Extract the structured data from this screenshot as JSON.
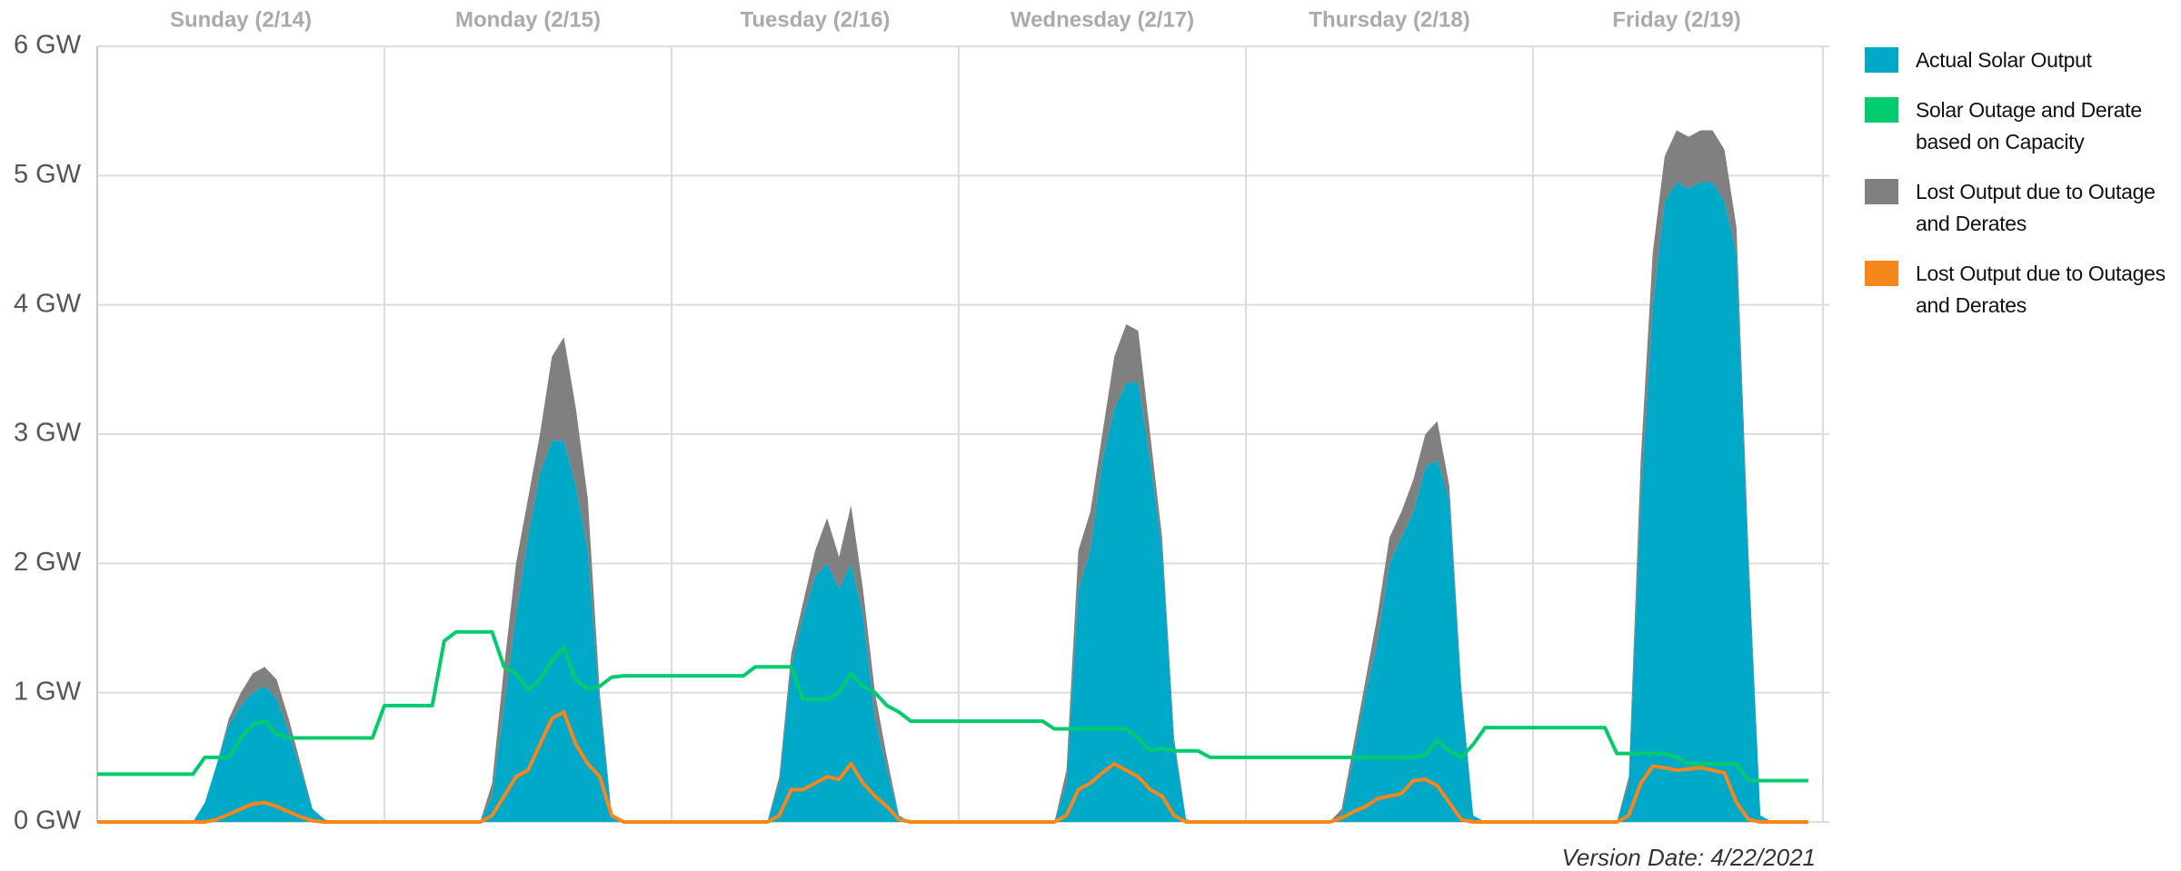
{
  "chart_data": {
    "type": "area",
    "days": [
      "Sunday (2/14)",
      "Monday (2/15)",
      "Tuesday (2/16)",
      "Wednesday (2/17)",
      "Thursday (2/18)",
      "Friday (2/19)"
    ],
    "x": [
      0,
      1,
      2,
      3,
      4,
      5,
      6,
      7,
      8,
      9,
      10,
      11,
      12,
      13,
      14,
      15,
      16,
      17,
      18,
      19,
      20,
      21,
      22,
      23,
      24,
      25,
      26,
      27,
      28,
      29,
      30,
      31,
      32,
      33,
      34,
      35,
      36,
      37,
      38,
      39,
      40,
      41,
      42,
      43,
      44,
      45,
      46,
      47,
      48,
      49,
      50,
      51,
      52,
      53,
      54,
      55,
      56,
      57,
      58,
      59,
      60,
      61,
      62,
      63,
      64,
      65,
      66,
      67,
      68,
      69,
      70,
      71,
      72,
      73,
      74,
      75,
      76,
      77,
      78,
      79,
      80,
      81,
      82,
      83,
      84,
      85,
      86,
      87,
      88,
      89,
      90,
      91,
      92,
      93,
      94,
      95,
      96,
      97,
      98,
      99,
      100,
      101,
      102,
      103,
      104,
      105,
      106,
      107,
      108,
      109,
      110,
      111,
      112,
      113,
      114,
      115,
      116,
      117,
      118,
      119,
      120,
      121,
      122,
      123,
      124,
      125,
      126,
      127,
      128,
      129,
      130,
      131,
      132,
      133,
      134,
      135,
      136,
      137,
      138,
      139,
      140,
      141,
      142,
      143
    ],
    "xlim": [
      0,
      144
    ],
    "ylim": [
      0,
      6
    ],
    "yticks": [
      {
        "value": 0,
        "label": "0 GW"
      },
      {
        "value": 1,
        "label": "1 GW"
      },
      {
        "value": 2,
        "label": "2 GW"
      },
      {
        "value": 3,
        "label": "3 GW"
      },
      {
        "value": 4,
        "label": "4 GW"
      },
      {
        "value": 5,
        "label": "5 GW"
      },
      {
        "value": 6,
        "label": "6 GW"
      }
    ],
    "grid": true,
    "stacked": true,
    "legend": "right",
    "annotation": "Version Date: 4/22/2021",
    "series": [
      {
        "name": "Actual Solar Output",
        "color": "#00a9c8",
        "kind": "area",
        "values": [
          0,
          0,
          0,
          0,
          0,
          0,
          0,
          0,
          0,
          0.15,
          0.45,
          0.75,
          0.9,
          1.0,
          1.05,
          0.95,
          0.7,
          0.4,
          0.1,
          0.02,
          0,
          0,
          0,
          0,
          0,
          0,
          0,
          0,
          0,
          0,
          0,
          0,
          0,
          0.2,
          0.9,
          1.6,
          2.2,
          2.7,
          2.95,
          2.95,
          2.6,
          2.1,
          0.9,
          0.05,
          0,
          0,
          0,
          0,
          0,
          0,
          0,
          0,
          0,
          0,
          0,
          0,
          0,
          0.3,
          1.2,
          1.6,
          1.9,
          2.0,
          1.8,
          2.0,
          1.6,
          0.8,
          0.4,
          0.05,
          0,
          0,
          0,
          0,
          0,
          0,
          0,
          0,
          0,
          0,
          0,
          0,
          0,
          0.3,
          1.8,
          2.1,
          2.8,
          3.2,
          3.4,
          3.4,
          2.8,
          2.1,
          0.6,
          0.02,
          0,
          0,
          0,
          0,
          0,
          0,
          0,
          0,
          0,
          0,
          0,
          0,
          0.05,
          0.5,
          1.0,
          1.4,
          2.0,
          2.2,
          2.4,
          2.75,
          2.8,
          2.5,
          1.0,
          0.05,
          0,
          0,
          0,
          0,
          0,
          0,
          0,
          0,
          0,
          0,
          0,
          0,
          0.3,
          2.5,
          4.0,
          4.8,
          4.95,
          4.9,
          4.95,
          4.95,
          4.8,
          4.4,
          2.0,
          0.05,
          0,
          0,
          0,
          0
        ]
      },
      {
        "name": "Solar Outage and Derate based on Capacity",
        "color": "#00cc6e",
        "kind": "line",
        "values": [
          0.37,
          0.37,
          0.37,
          0.37,
          0.37,
          0.37,
          0.37,
          0.37,
          0.37,
          0.5,
          0.5,
          0.5,
          0.65,
          0.75,
          0.78,
          0.68,
          0.65,
          0.65,
          0.65,
          0.65,
          0.65,
          0.65,
          0.65,
          0.65,
          0.9,
          0.9,
          0.9,
          0.9,
          0.9,
          1.4,
          1.47,
          1.47,
          1.47,
          1.47,
          1.2,
          1.15,
          1.02,
          1.1,
          1.25,
          1.35,
          1.1,
          1.03,
          1.05,
          1.12,
          1.13,
          1.13,
          1.13,
          1.13,
          1.13,
          1.13,
          1.13,
          1.13,
          1.13,
          1.13,
          1.13,
          1.2,
          1.2,
          1.2,
          1.2,
          0.95,
          0.95,
          0.95,
          1.0,
          1.15,
          1.05,
          1.0,
          0.9,
          0.85,
          0.78,
          0.78,
          0.78,
          0.78,
          0.78,
          0.78,
          0.78,
          0.78,
          0.78,
          0.78,
          0.78,
          0.78,
          0.72,
          0.72,
          0.72,
          0.72,
          0.72,
          0.72,
          0.72,
          0.65,
          0.55,
          0.57,
          0.55,
          0.55,
          0.55,
          0.5,
          0.5,
          0.5,
          0.5,
          0.5,
          0.5,
          0.5,
          0.5,
          0.5,
          0.5,
          0.5,
          0.5,
          0.5,
          0.5,
          0.5,
          0.5,
          0.5,
          0.5,
          0.52,
          0.63,
          0.55,
          0.5,
          0.6,
          0.73,
          0.73,
          0.73,
          0.73,
          0.73,
          0.73,
          0.73,
          0.73,
          0.73,
          0.73,
          0.73,
          0.53,
          0.53,
          0.53,
          0.53,
          0.53,
          0.5,
          0.45,
          0.45,
          0.45,
          0.45,
          0.45,
          0.32,
          0.32,
          0.32,
          0.32,
          0.32,
          0.32
        ]
      },
      {
        "name": "Lost Output due to Outage and Derates",
        "color": "#808080",
        "kind": "area",
        "values": [
          0,
          0,
          0,
          0,
          0,
          0,
          0,
          0,
          0,
          0,
          0,
          0.05,
          0.1,
          0.15,
          0.15,
          0.15,
          0.1,
          0.05,
          0,
          0,
          0,
          0,
          0,
          0,
          0,
          0,
          0,
          0,
          0,
          0,
          0,
          0,
          0,
          0.1,
          0.3,
          0.4,
          0.3,
          0.3,
          0.65,
          0.8,
          0.6,
          0.4,
          0.1,
          0,
          0,
          0,
          0,
          0,
          0,
          0,
          0,
          0,
          0,
          0,
          0,
          0,
          0,
          0.05,
          0.1,
          0.1,
          0.2,
          0.35,
          0.25,
          0.45,
          0.2,
          0.2,
          0.1,
          0,
          0,
          0,
          0,
          0,
          0,
          0,
          0,
          0,
          0,
          0,
          0,
          0,
          0,
          0.1,
          0.3,
          0.3,
          0.2,
          0.4,
          0.45,
          0.4,
          0.2,
          0.1,
          0.05,
          0,
          0,
          0,
          0,
          0,
          0,
          0,
          0,
          0,
          0,
          0,
          0,
          0,
          0.05,
          0.1,
          0.1,
          0.2,
          0.2,
          0.2,
          0.25,
          0.25,
          0.3,
          0.1,
          0.05,
          0,
          0,
          0,
          0,
          0,
          0,
          0,
          0,
          0,
          0,
          0,
          0,
          0,
          0.05,
          0.3,
          0.4,
          0.35,
          0.4,
          0.4,
          0.4,
          0.4,
          0.4,
          0.2,
          0.1,
          0,
          0,
          0,
          0,
          0
        ]
      },
      {
        "name": "Lost Output due to Outages and Derates",
        "color": "#f7861c",
        "kind": "line",
        "values": [
          0,
          0,
          0,
          0,
          0,
          0,
          0,
          0,
          0,
          0,
          0.02,
          0.06,
          0.1,
          0.14,
          0.15,
          0.12,
          0.08,
          0.04,
          0.01,
          0,
          0,
          0,
          0,
          0,
          0,
          0,
          0,
          0,
          0,
          0,
          0,
          0,
          0,
          0.05,
          0.2,
          0.35,
          0.4,
          0.6,
          0.8,
          0.85,
          0.6,
          0.45,
          0.35,
          0.05,
          0,
          0,
          0,
          0,
          0,
          0,
          0,
          0,
          0,
          0,
          0,
          0,
          0,
          0.05,
          0.25,
          0.25,
          0.3,
          0.35,
          0.33,
          0.45,
          0.3,
          0.2,
          0.12,
          0.02,
          0,
          0,
          0,
          0,
          0,
          0,
          0,
          0,
          0,
          0,
          0,
          0,
          0,
          0.05,
          0.25,
          0.3,
          0.38,
          0.45,
          0.4,
          0.35,
          0.25,
          0.2,
          0.05,
          0,
          0,
          0,
          0,
          0,
          0,
          0,
          0,
          0,
          0,
          0,
          0,
          0,
          0.03,
          0.08,
          0.12,
          0.18,
          0.2,
          0.22,
          0.32,
          0.33,
          0.28,
          0.15,
          0.02,
          0,
          0,
          0,
          0,
          0,
          0,
          0,
          0,
          0,
          0,
          0,
          0,
          0,
          0.05,
          0.3,
          0.43,
          0.42,
          0.4,
          0.41,
          0.42,
          0.4,
          0.38,
          0.15,
          0.02,
          0,
          0,
          0,
          0,
          0
        ]
      }
    ]
  }
}
